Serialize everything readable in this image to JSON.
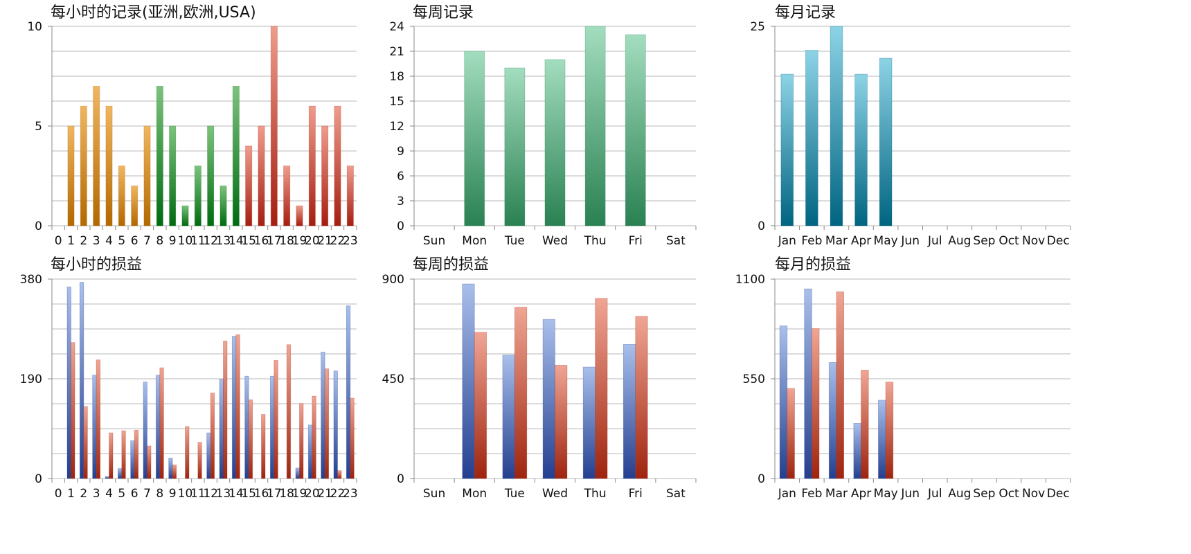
{
  "colors": {
    "orange": [
      "#f0b660",
      "#b36800"
    ],
    "green": [
      "#7cc37c",
      "#006b10"
    ],
    "red": [
      "#ef9c8c",
      "#a51e10"
    ],
    "mint": [
      "#a3ddbf",
      "#2a8152"
    ],
    "teal": [
      "#8dd3e6",
      "#006480"
    ],
    "blue": [
      "#a9bfeb",
      "#243f8f"
    ],
    "salmon": [
      "#f0a594",
      "#9e240e"
    ]
  },
  "chart_data": [
    {
      "id": "hourly-records",
      "type": "bar",
      "title": "每小时的记录(亚洲,欧洲,USA)",
      "categories": [
        "0",
        "1",
        "2",
        "3",
        "4",
        "5",
        "6",
        "7",
        "8",
        "9",
        "10",
        "11",
        "12",
        "13",
        "14",
        "15",
        "16",
        "17",
        "18",
        "19",
        "20",
        "21",
        "22",
        "23"
      ],
      "values": [
        0,
        5,
        6,
        7,
        6,
        3,
        2,
        5,
        7,
        5,
        1,
        3,
        5,
        2,
        7,
        4,
        5,
        10,
        3,
        1,
        6,
        5,
        6,
        3
      ],
      "bar_colors": [
        "orange",
        "orange",
        "orange",
        "orange",
        "orange",
        "orange",
        "orange",
        "orange",
        "green",
        "green",
        "green",
        "green",
        "green",
        "green",
        "green",
        "red",
        "red",
        "red",
        "red",
        "red",
        "red",
        "red",
        "red",
        "red"
      ],
      "ylim": [
        0,
        10
      ],
      "yticks": [
        0,
        5,
        10
      ],
      "grid_lines": 8
    },
    {
      "id": "weekly-records",
      "type": "bar",
      "title": "每周记录",
      "categories": [
        "Sun",
        "Mon",
        "Tue",
        "Wed",
        "Thu",
        "Fri",
        "Sat"
      ],
      "values": [
        0,
        21,
        19,
        20,
        24,
        23,
        0
      ],
      "color": "mint",
      "ylim": [
        0,
        24
      ],
      "yticks": [
        0,
        3,
        6,
        9,
        12,
        15,
        18,
        21,
        24
      ],
      "grid_lines": 8
    },
    {
      "id": "monthly-records",
      "type": "bar",
      "title": "每月记录",
      "categories": [
        "Jan",
        "Feb",
        "Mar",
        "Apr",
        "May",
        "Jun",
        "Jul",
        "Aug",
        "Sep",
        "Oct",
        "Nov",
        "Dec"
      ],
      "values": [
        19,
        22,
        25,
        19,
        21,
        0,
        0,
        0,
        0,
        0,
        0,
        0
      ],
      "color": "teal",
      "ylim": [
        0,
        25
      ],
      "yticks": [
        0,
        25
      ],
      "grid_lines": 8
    },
    {
      "id": "hourly-pnl",
      "type": "bar",
      "title": "每小时的损益",
      "categories": [
        "0",
        "1",
        "2",
        "3",
        "4",
        "5",
        "6",
        "7",
        "8",
        "9",
        "10",
        "11",
        "12",
        "13",
        "14",
        "15",
        "16",
        "17",
        "18",
        "19",
        "20",
        "21",
        "22",
        "23"
      ],
      "series": [
        {
          "color": "blue",
          "values": [
            0,
            365,
            374,
            197,
            4,
            19,
            72,
            184,
            197,
            39,
            0,
            0,
            87,
            189,
            271,
            195,
            0,
            195,
            0,
            20,
            102,
            241,
            205,
            329
          ]
        },
        {
          "color": "salmon",
          "values": [
            0,
            259,
            137,
            226,
            87,
            91,
            92,
            62,
            211,
            26,
            99,
            69,
            163,
            262,
            274,
            150,
            122,
            225,
            255,
            143,
            157,
            209,
            15,
            153
          ]
        }
      ],
      "ylim": [
        0,
        380
      ],
      "yticks": [
        0,
        190,
        380
      ],
      "grid_lines": 8
    },
    {
      "id": "weekly-pnl",
      "type": "bar",
      "title": "每周的损益",
      "categories": [
        "Sun",
        "Mon",
        "Tue",
        "Wed",
        "Thu",
        "Fri",
        "Sat"
      ],
      "series": [
        {
          "color": "blue",
          "values": [
            0,
            878,
            557,
            718,
            503,
            605,
            0
          ]
        },
        {
          "color": "salmon",
          "values": [
            0,
            660,
            773,
            511,
            813,
            732,
            0
          ]
        }
      ],
      "ylim": [
        0,
        900
      ],
      "yticks": [
        0,
        450,
        900
      ],
      "grid_lines": 8
    },
    {
      "id": "monthly-pnl",
      "type": "bar",
      "title": "每月的损益",
      "categories": [
        "Jan",
        "Feb",
        "Mar",
        "Apr",
        "May",
        "Jun",
        "Jul",
        "Aug",
        "Sep",
        "Oct",
        "Nov",
        "Dec"
      ],
      "series": [
        {
          "color": "blue",
          "values": [
            842,
            1046,
            640,
            304,
            432,
            0,
            0,
            0,
            0,
            0,
            0,
            0
          ]
        },
        {
          "color": "salmon",
          "values": [
            497,
            827,
            1030,
            598,
            532,
            0,
            0,
            0,
            0,
            0,
            0,
            0
          ]
        }
      ],
      "ylim": [
        0,
        1100
      ],
      "yticks": [
        0,
        550,
        1100
      ],
      "grid_lines": 8
    }
  ]
}
